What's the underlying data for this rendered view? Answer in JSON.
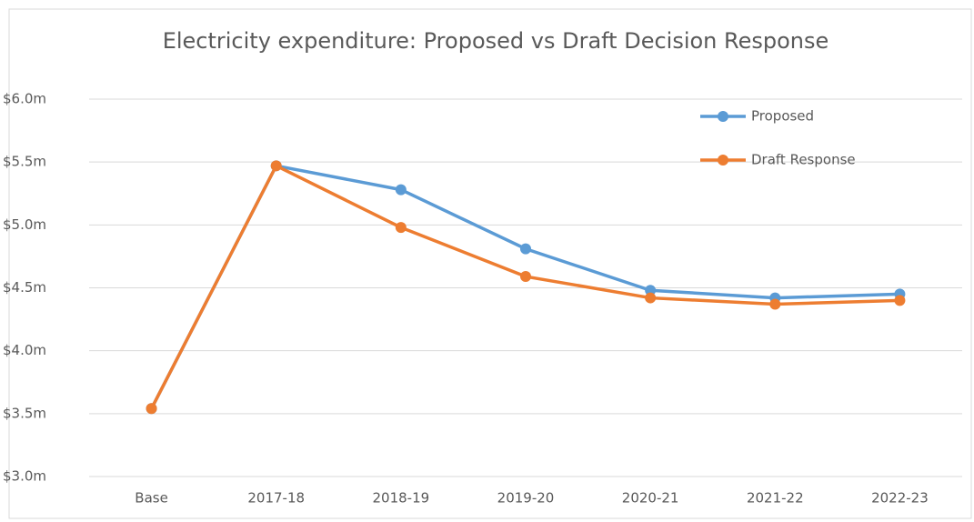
{
  "chart_data": {
    "type": "line",
    "title": "Electricity expenditure: Proposed vs Draft Decision Response",
    "categories": [
      "Base",
      "2017-18",
      "2018-19",
      "2019-20",
      "2020-21",
      "2021-22",
      "2022-23"
    ],
    "series": [
      {
        "name": "Proposed",
        "color": "#5b9bd5",
        "values": [
          3.54,
          5.47,
          5.28,
          4.81,
          4.48,
          4.42,
          4.45
        ]
      },
      {
        "name": "Draft Response",
        "color": "#ed7d31",
        "values": [
          3.54,
          5.47,
          4.98,
          4.59,
          4.42,
          4.37,
          4.4
        ]
      }
    ],
    "ylim": [
      3.0,
      6.0
    ],
    "yticks": [
      {
        "value": 3.0,
        "label": "$3.0m"
      },
      {
        "value": 3.5,
        "label": "$3.5m"
      },
      {
        "value": 4.0,
        "label": "$4.0m"
      },
      {
        "value": 4.5,
        "label": "$4.5m"
      },
      {
        "value": 5.0,
        "label": "$5.0m"
      },
      {
        "value": 5.5,
        "label": "$5.5m"
      },
      {
        "value": 6.0,
        "label": "$6.0m"
      }
    ],
    "grid": true,
    "legend": "top-right"
  }
}
